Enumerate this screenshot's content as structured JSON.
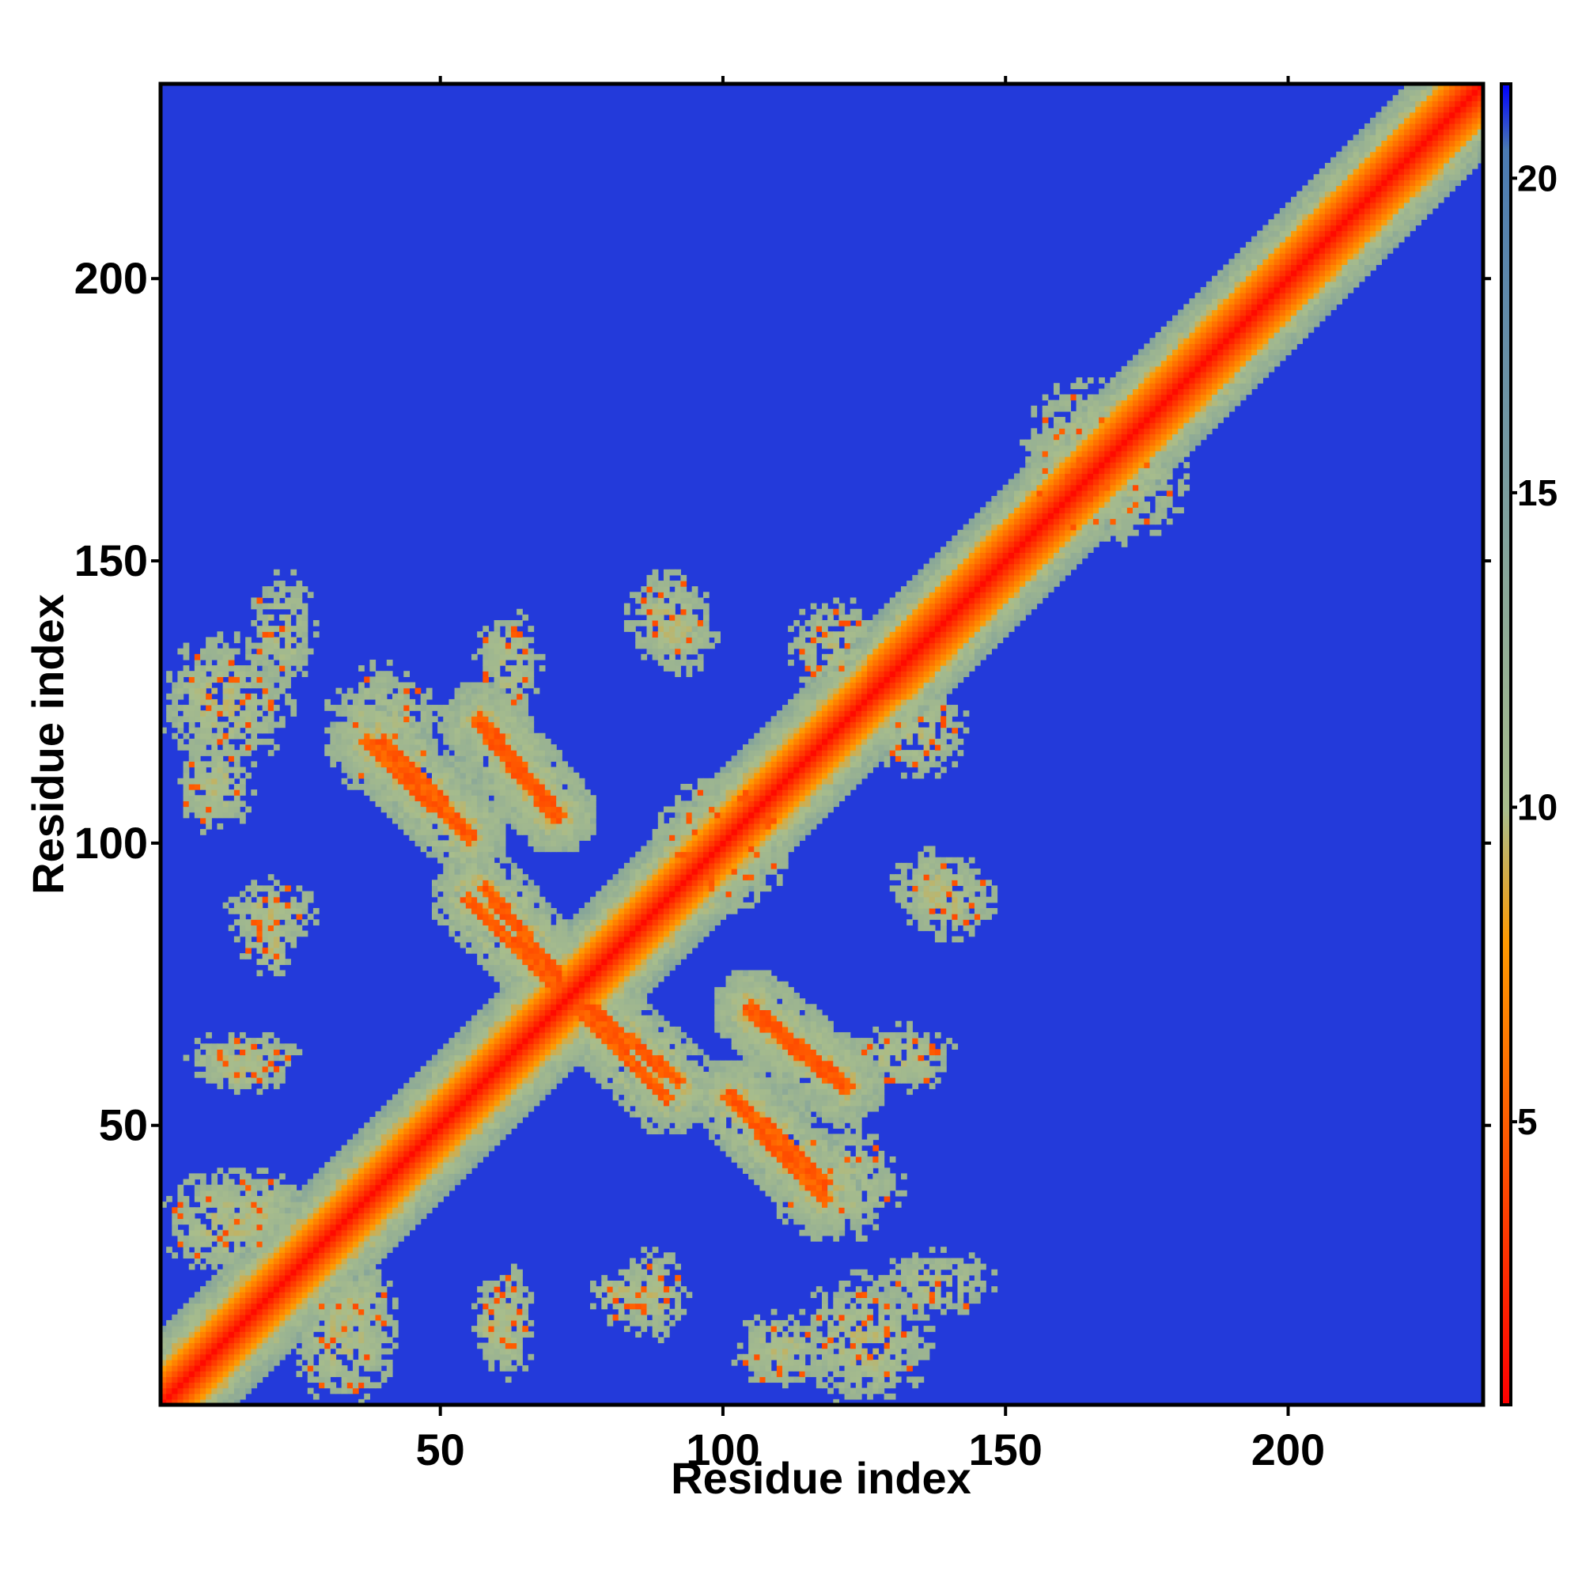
{
  "chart_data": {
    "type": "heatmap",
    "title": "",
    "xlabel": "Residue index",
    "ylabel": "Residue index",
    "xlim": [
      1,
      234
    ],
    "ylim": [
      1,
      234
    ],
    "x_ticks": [
      50,
      100,
      150,
      200
    ],
    "y_ticks": [
      50,
      100,
      150,
      200
    ],
    "colorbar": {
      "ticks": [
        5,
        10,
        15,
        20
      ],
      "range": [
        0.5,
        21.5
      ],
      "colors": [
        "#ff0000",
        "#ff9900",
        "#a8bd8c",
        "#4a7ab2",
        "#0000ff"
      ],
      "color_stops": [
        0,
        0.35,
        0.45,
        0.95,
        1.0
      ]
    },
    "background_value": 21,
    "description_value": "pairwise distance map (Å), symmetric about diagonal, capped at 21",
    "contact_features": [
      {
        "kind": "diagonal",
        "from": 1,
        "to": 234
      },
      {
        "kind": "antiparallel",
        "x": [
          57,
          70
        ],
        "y": [
          121,
          105
        ]
      },
      {
        "kind": "antiparallel",
        "x": [
          37,
          55
        ],
        "y": [
          118,
          101
        ]
      },
      {
        "kind": "antiparallel",
        "x": [
          58,
          72
        ],
        "y": [
          92,
          75
        ]
      },
      {
        "kind": "antiparallel",
        "x": [
          75,
          90
        ],
        "y": [
          70,
          55
        ]
      },
      {
        "kind": "antiparallel",
        "x": [
          105,
          122
        ],
        "y": [
          71,
          57
        ]
      },
      {
        "kind": "antiparallel",
        "x": [
          102,
          118
        ],
        "y": [
          55,
          40
        ]
      },
      {
        "kind": "cluster",
        "x": 12,
        "y": 125,
        "w": 20,
        "h": 20
      },
      {
        "kind": "cluster",
        "x": 20,
        "y": 88,
        "w": 14,
        "h": 10
      },
      {
        "kind": "cluster",
        "x": 15,
        "y": 62,
        "w": 18,
        "h": 8
      },
      {
        "kind": "cluster",
        "x": 12,
        "y": 33,
        "w": 20,
        "h": 16
      },
      {
        "kind": "cluster",
        "x": 35,
        "y": 18,
        "w": 12,
        "h": 14
      },
      {
        "kind": "cluster",
        "x": 60,
        "y": 15,
        "w": 8,
        "h": 14
      },
      {
        "kind": "cluster",
        "x": 82,
        "y": 20,
        "w": 10,
        "h": 10
      },
      {
        "kind": "cluster",
        "x": 92,
        "y": 138,
        "w": 12,
        "h": 14
      },
      {
        "kind": "cluster",
        "x": 120,
        "y": 135,
        "w": 14,
        "h": 14
      },
      {
        "kind": "cluster",
        "x": 120,
        "y": 40,
        "w": 20,
        "h": 18
      },
      {
        "kind": "cluster",
        "x": 140,
        "y": 90,
        "w": 14,
        "h": 12
      },
      {
        "kind": "cluster",
        "x": 110,
        "y": 10,
        "w": 14,
        "h": 12
      },
      {
        "kind": "cluster",
        "x": 138,
        "y": 22,
        "w": 18,
        "h": 10
      },
      {
        "kind": "cluster",
        "x": 132,
        "y": 62,
        "w": 16,
        "h": 10
      },
      {
        "kind": "cluster",
        "x": 168,
        "y": 165,
        "w": 24,
        "h": 22
      },
      {
        "kind": "cluster",
        "x": 100,
        "y": 100,
        "w": 20,
        "h": 20
      }
    ]
  }
}
